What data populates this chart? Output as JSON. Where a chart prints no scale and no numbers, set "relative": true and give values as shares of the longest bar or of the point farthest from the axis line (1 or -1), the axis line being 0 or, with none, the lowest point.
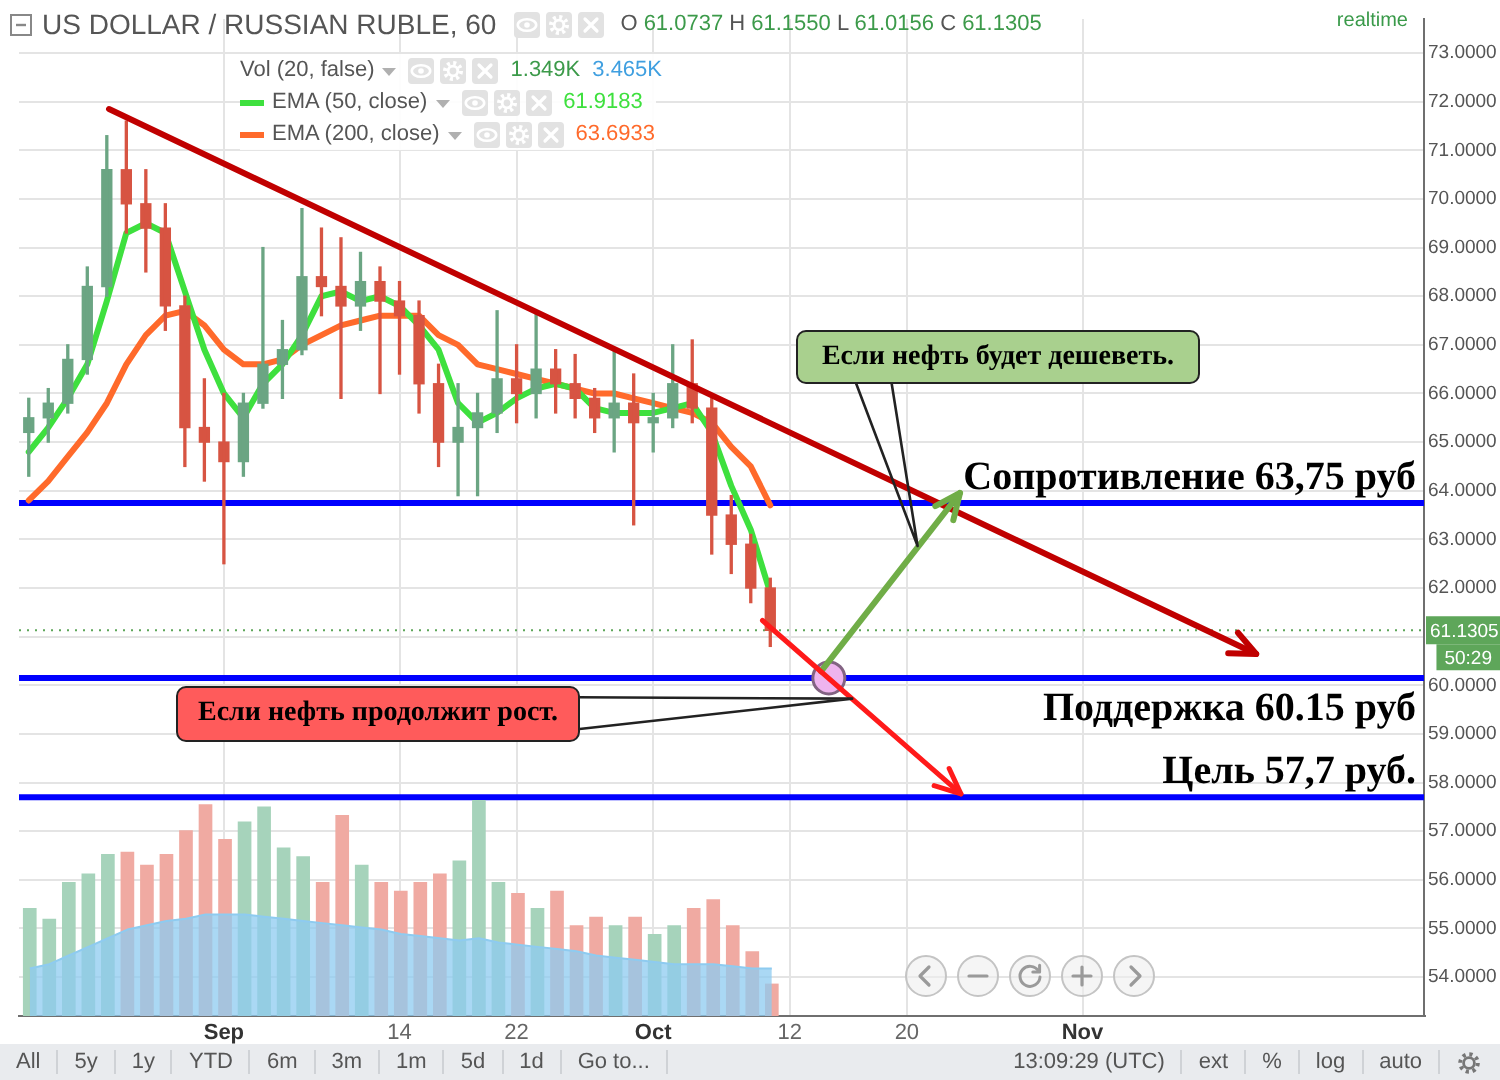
{
  "chart_data": [
    {
      "type": "candlestick",
      "title": "US DOLLAR / RUSSIAN RUBLE, 60",
      "subtitle": "O 61.0737 H 61.1550 L 61.0156 C 61.1305",
      "categories": [
        null,
        null,
        null,
        null,
        null,
        null,
        null,
        null,
        null,
        null,
        "Sep",
        null,
        null,
        null,
        null,
        null,
        null,
        null,
        null,
        "14",
        null,
        null,
        null,
        null,
        null,
        "22",
        null,
        null,
        null,
        null,
        null,
        null,
        "Oct",
        null,
        null,
        null,
        null,
        null,
        null,
        "12",
        null,
        null,
        null,
        null,
        null,
        "20",
        null,
        null,
        null,
        null,
        null,
        null,
        null,
        null,
        "Nov",
        null,
        null,
        null,
        null,
        null,
        null,
        null,
        null,
        null,
        null,
        null,
        null,
        null,
        null,
        null,
        null,
        null
      ],
      "ohlc": [
        [
          65.2,
          65.9,
          64.3,
          65.5
        ],
        [
          65.5,
          66.1,
          65.0,
          65.8
        ],
        [
          65.8,
          67.0,
          65.6,
          66.7
        ],
        [
          66.7,
          68.6,
          66.4,
          68.2
        ],
        [
          68.2,
          71.3,
          68.0,
          70.6
        ],
        [
          70.6,
          71.6,
          69.3,
          69.9
        ],
        [
          69.9,
          70.6,
          68.5,
          69.4
        ],
        [
          69.4,
          69.9,
          67.3,
          67.8
        ],
        [
          67.8,
          68.0,
          64.5,
          65.3
        ],
        [
          65.3,
          66.3,
          64.2,
          65.0
        ],
        [
          65.0,
          66.0,
          62.5,
          64.6
        ],
        [
          64.6,
          66.0,
          64.3,
          65.8
        ],
        [
          65.8,
          69.0,
          65.7,
          66.6
        ],
        [
          66.6,
          67.5,
          65.9,
          66.9
        ],
        [
          66.9,
          69.8,
          66.8,
          68.4
        ],
        [
          68.4,
          69.4,
          67.6,
          68.2
        ],
        [
          68.2,
          69.2,
          65.9,
          67.8
        ],
        [
          67.8,
          68.9,
          67.3,
          68.3
        ],
        [
          68.3,
          68.6,
          66.0,
          67.9
        ],
        [
          67.9,
          68.3,
          66.4,
          67.6
        ],
        [
          67.6,
          67.9,
          65.6,
          66.2
        ],
        [
          66.2,
          66.6,
          64.5,
          65.0
        ],
        [
          65.0,
          66.2,
          63.9,
          65.3
        ],
        [
          65.3,
          66.0,
          63.9,
          65.6
        ],
        [
          65.6,
          67.7,
          65.2,
          66.3
        ],
        [
          66.3,
          67.0,
          65.4,
          66.0
        ],
        [
          66.0,
          67.7,
          65.5,
          66.5
        ],
        [
          66.5,
          66.9,
          65.6,
          66.2
        ],
        [
          66.2,
          66.8,
          65.5,
          65.9
        ],
        [
          65.9,
          66.1,
          65.2,
          65.5
        ],
        [
          65.5,
          66.9,
          64.8,
          65.8
        ],
        [
          65.8,
          66.4,
          63.3,
          65.4
        ],
        [
          65.4,
          66.0,
          64.8,
          65.5
        ],
        [
          65.5,
          67.0,
          65.3,
          66.2
        ],
        [
          66.2,
          67.1,
          65.4,
          65.7
        ],
        [
          65.7,
          65.9,
          62.7,
          63.5
        ],
        [
          63.5,
          63.9,
          62.3,
          62.9
        ],
        [
          62.9,
          63.1,
          61.7,
          62.0
        ],
        [
          62.0,
          62.2,
          60.8,
          61.13
        ],
        null,
        null,
        null,
        null,
        null,
        null,
        null,
        null,
        null,
        null,
        null,
        null,
        null,
        null,
        null,
        null,
        null,
        null,
        null,
        null,
        null,
        null,
        null,
        null,
        null,
        null,
        null,
        null,
        null,
        null,
        null,
        null,
        null
      ],
      "colors": [
        "#6ba583",
        "#6ba583",
        "#6ba583",
        "#6ba583",
        "#6ba583",
        "#d75442",
        "#d75442",
        "#d75442",
        "#d75442",
        "#d75442",
        "#d75442",
        "#6ba583",
        "#6ba583",
        "#6ba583",
        "#6ba583",
        "#d75442",
        "#d75442",
        "#6ba583",
        "#d75442",
        "#d75442",
        "#d75442",
        "#d75442",
        "#6ba583",
        "#6ba583",
        "#6ba583",
        "#d75442",
        "#6ba583",
        "#d75442",
        "#d75442",
        "#d75442",
        "#6ba583",
        "#d75442",
        "#6ba583",
        "#6ba583",
        "#d75442",
        "#d75442",
        "#d75442",
        "#d75442",
        "#d75442",
        null,
        null,
        null,
        null,
        null,
        null,
        null,
        null,
        null,
        null,
        null,
        null,
        null,
        null,
        null,
        null,
        null,
        null,
        null,
        null,
        null,
        null,
        null,
        null,
        null,
        null,
        null,
        null,
        null,
        null,
        null,
        null,
        null
      ],
      "series": [
        {
          "type": "line",
          "name": "EMA (50, close)",
          "color": "#3ee03e",
          "values": [
            64.8,
            65.3,
            65.9,
            66.6,
            67.9,
            69.3,
            69.5,
            69.3,
            68.1,
            66.9,
            66.0,
            65.5,
            66.2,
            66.6,
            67.2,
            68.0,
            68.1,
            67.9,
            68.0,
            67.8,
            67.4,
            66.9,
            65.8,
            65.4,
            65.6,
            65.9,
            66.1,
            66.2,
            66.1,
            65.7,
            65.6,
            65.6,
            65.6,
            65.7,
            65.8,
            65.2,
            64.1,
            63.2,
            61.9,
            null,
            null,
            null,
            null,
            null,
            null,
            null,
            null,
            null,
            null,
            null,
            null,
            null,
            null,
            null,
            null,
            null,
            null,
            null,
            null,
            null,
            null,
            null,
            null,
            null,
            null,
            null,
            null,
            null,
            null,
            null,
            null,
            null
          ]
        },
        {
          "type": "line",
          "name": "EMA (200, close)",
          "color": "#ff6a2b",
          "values": [
            63.8,
            64.2,
            64.7,
            65.2,
            65.8,
            66.6,
            67.2,
            67.6,
            67.7,
            67.4,
            66.9,
            66.6,
            66.6,
            66.7,
            67.0,
            67.2,
            67.4,
            67.5,
            67.6,
            67.6,
            67.6,
            67.2,
            67.0,
            66.6,
            66.5,
            66.4,
            66.3,
            66.2,
            66.1,
            66.0,
            66.0,
            65.9,
            65.8,
            65.7,
            65.6,
            65.4,
            64.9,
            64.5,
            63.7,
            null,
            null,
            null,
            null,
            null,
            null,
            null,
            null,
            null,
            null,
            null,
            null,
            null,
            null,
            null,
            null,
            null,
            null,
            null,
            null,
            null,
            null,
            null,
            null,
            null,
            null,
            null,
            null,
            null,
            null,
            null,
            null,
            null
          ]
        },
        {
          "type": "scatter",
          "color": "#eeb4ee",
          "marker": "circle",
          "values": [
            null,
            null,
            null,
            null,
            null,
            null,
            null,
            null,
            null,
            null,
            null,
            null,
            null,
            null,
            null,
            null,
            null,
            null,
            null,
            null,
            null,
            null,
            null,
            null,
            null,
            null,
            null,
            null,
            null,
            null,
            null,
            null,
            null,
            null,
            null,
            null,
            null,
            null,
            null,
            null,
            null,
            60.15,
            null,
            null,
            null,
            null,
            null,
            null,
            null,
            null,
            null,
            null,
            null,
            null,
            null,
            null,
            null,
            null,
            null,
            null,
            null,
            null,
            null,
            null,
            null,
            null,
            null,
            null,
            null,
            null,
            null,
            null
          ]
        }
      ],
      "ylim": [
        53.2,
        73.7
      ],
      "yticks": [
        {
          "value": 54,
          "label": "54.0000"
        },
        {
          "value": 55,
          "label": "55.0000"
        },
        {
          "value": 56,
          "label": "56.0000"
        },
        {
          "value": 57,
          "label": "57.0000"
        },
        {
          "value": 58,
          "label": "58.0000"
        },
        {
          "value": 59,
          "label": "59.0000"
        },
        {
          "value": 60,
          "label": "60.0000"
        },
        {
          "value": 61,
          "label": null
        },
        {
          "value": 62,
          "label": "62.0000"
        },
        {
          "value": 63,
          "label": "63.0000"
        },
        {
          "value": 64,
          "label": "64.0000"
        },
        {
          "value": 65,
          "label": "65.0000"
        },
        {
          "value": 66,
          "label": "66.0000"
        },
        {
          "value": 67,
          "label": "67.0000"
        },
        {
          "value": 68,
          "label": "68.0000"
        },
        {
          "value": 69,
          "label": "69.0000"
        },
        {
          "value": 70,
          "label": "70.0000"
        },
        {
          "value": 71,
          "label": "71.0000"
        },
        {
          "value": 72,
          "label": "72.0000"
        },
        {
          "value": 73,
          "label": "73.0000"
        }
      ],
      "ref_lines": [
        {
          "axis": "y",
          "value": 63.75,
          "label": "Сопротивление 63,75 руб",
          "color": "#0000ff"
        },
        {
          "axis": "y",
          "value": 60.15,
          "label": "Поддержка 60.15 руб",
          "color": "#0000ff"
        },
        {
          "axis": "y",
          "value": 57.7,
          "label": "Цель 57,7 руб.",
          "color": "#0000ff"
        },
        {
          "axis": "y",
          "value": 61.1305,
          "label": "61.1305",
          "color": "#5ea65a",
          "line_style": "dotted"
        }
      ],
      "grid": true,
      "legend": "top left",
      "annotations": [
        "Если нефть будет дешеветь.",
        "Если нефть продолжит рост.",
        "61.9183",
        "63.6933",
        "realtime",
        "50:29",
        "All",
        "5y",
        "1y",
        "YTD",
        "6m",
        "3m",
        "1m",
        "5d",
        "1d",
        "Go to...",
        "13:09:29 (UTC)",
        "ext",
        "%",
        "log",
        "auto"
      ]
    },
    {
      "type": "bar",
      "relative": true,
      "categories": [
        null,
        null,
        null,
        null,
        null,
        null,
        null,
        null,
        null,
        null,
        null,
        null,
        null,
        null,
        null,
        null,
        null,
        null,
        null,
        null,
        null,
        null,
        null,
        null,
        null,
        null,
        null,
        null,
        null,
        null,
        null,
        null,
        null,
        null,
        null,
        null,
        null,
        null,
        null,
        null,
        null,
        null,
        null,
        null,
        null,
        null,
        null,
        null,
        null,
        null,
        null,
        null,
        null,
        null,
        null,
        null,
        null,
        null,
        null,
        null,
        null,
        null,
        null,
        null,
        null,
        null,
        null,
        null,
        null,
        null,
        null,
        null
      ],
      "series": [
        {
          "name": "Vol (20, false)",
          "colors": [
            "#a6d3bb",
            "#a6d3bb",
            "#a6d3bb",
            "#a6d3bb",
            "#a6d3bb",
            "#f0aaa2",
            "#f0aaa2",
            "#f0aaa2",
            "#f0aaa2",
            "#f0aaa2",
            "#f0aaa2",
            "#a6d3bb",
            "#a6d3bb",
            "#a6d3bb",
            "#a6d3bb",
            "#f0aaa2",
            "#f0aaa2",
            "#a6d3bb",
            "#f0aaa2",
            "#f0aaa2",
            "#f0aaa2",
            "#f0aaa2",
            "#a6d3bb",
            "#a6d3bb",
            "#a6d3bb",
            "#f0aaa2",
            "#a6d3bb",
            "#f0aaa2",
            "#f0aaa2",
            "#f0aaa2",
            "#a6d3bb",
            "#f0aaa2",
            "#a6d3bb",
            "#a6d3bb",
            "#f0aaa2",
            "#f0aaa2",
            "#f0aaa2",
            "#f0aaa2",
            "#f0aaa2",
            null,
            null,
            null,
            null,
            null,
            null,
            null,
            null,
            null,
            null,
            null,
            null,
            null,
            null,
            null,
            null,
            null,
            null,
            null,
            null,
            null,
            null,
            null,
            null,
            null,
            null,
            null,
            null,
            null,
            null,
            null,
            null,
            null
          ],
          "values": [
            0.5,
            0.45,
            0.62,
            0.66,
            0.75,
            0.76,
            0.7,
            0.75,
            0.86,
            0.98,
            0.82,
            0.9,
            0.97,
            0.78,
            0.74,
            0.62,
            0.93,
            0.7,
            0.62,
            0.58,
            0.62,
            0.66,
            0.72,
            1,
            0.62,
            0.57,
            0.5,
            0.58,
            0.42,
            0.46,
            0.42,
            0.46,
            0.38,
            0.42,
            0.5,
            0.54,
            0.42,
            0.3,
            0.15,
            null,
            null,
            null,
            null,
            null,
            null,
            null,
            null,
            null,
            null,
            null,
            null,
            null,
            null,
            null,
            null,
            null,
            null,
            null,
            null,
            null,
            null,
            null,
            null,
            null,
            null,
            null,
            null,
            null,
            null,
            null,
            null,
            null
          ]
        },
        {
          "type": "area",
          "color": "#8ecbf0",
          "values": [
            0.22,
            0.24,
            0.28,
            0.32,
            0.36,
            0.4,
            0.42,
            0.44,
            0.45,
            0.47,
            0.47,
            0.47,
            0.46,
            0.45,
            0.44,
            0.43,
            0.42,
            0.41,
            0.4,
            0.38,
            0.37,
            0.36,
            0.35,
            0.36,
            0.34,
            0.33,
            0.32,
            0.31,
            0.3,
            0.28,
            0.27,
            0.26,
            0.25,
            0.24,
            0.24,
            0.24,
            0.23,
            0.22,
            0.22,
            null,
            null,
            null,
            null,
            null,
            null,
            null,
            null,
            null,
            null,
            null,
            null,
            null,
            null,
            null,
            null,
            null,
            null,
            null,
            null,
            null,
            null,
            null,
            null,
            null,
            null,
            null,
            null,
            null,
            null,
            null,
            null,
            null
          ]
        }
      ],
      "legend": "top left",
      "annotations": [
        "1.349K",
        "3.465K"
      ]
    }
  ]
}
